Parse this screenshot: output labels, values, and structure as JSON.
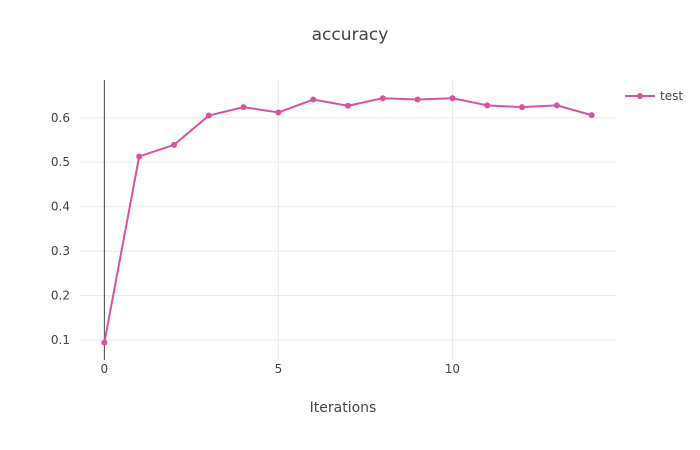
{
  "chart_data": {
    "type": "line",
    "title": "accuracy",
    "xlabel": "Iterations",
    "ylabel": "",
    "xlim": [
      -0.7,
      14.7
    ],
    "ylim": [
      0.055,
      0.685
    ],
    "x_ticks": [
      0,
      5,
      10
    ],
    "y_ticks": [
      0.1,
      0.2,
      0.3,
      0.4,
      0.5,
      0.6
    ],
    "grid": true,
    "legend_position": "top-right",
    "series": [
      {
        "name": "test",
        "color": "#d7529f",
        "x": [
          0,
          1,
          2,
          3,
          4,
          5,
          6,
          7,
          8,
          9,
          10,
          11,
          12,
          13,
          14
        ],
        "y": [
          0.094,
          0.513,
          0.539,
          0.605,
          0.624,
          0.612,
          0.641,
          0.627,
          0.644,
          0.641,
          0.644,
          0.628,
          0.624,
          0.628,
          0.606
        ]
      }
    ]
  }
}
